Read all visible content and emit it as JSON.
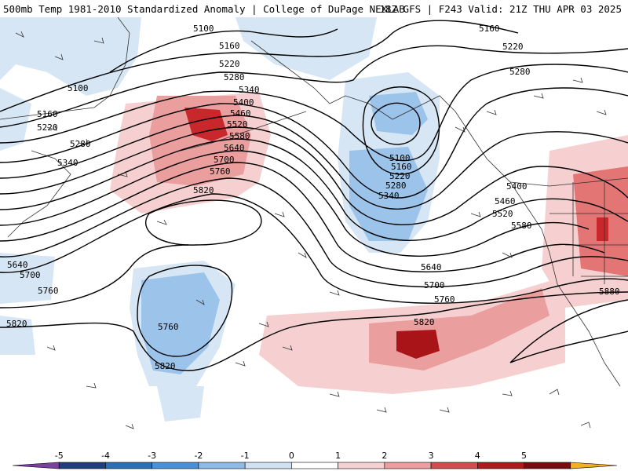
{
  "header": {
    "title_left": "500mb Temp 1981-2010 Standardized Anomaly | College of DuPage NEXLAB",
    "title_right": "18Z GFS | F243 Valid: 21Z THU APR 03 2025"
  },
  "colorbar": {
    "ticks": [
      "-5",
      "-4",
      "-3",
      "-2",
      "-1",
      "0",
      "1",
      "2",
      "3",
      "4",
      "5"
    ],
    "colors": [
      "#7b3fa0",
      "#1f3f7a",
      "#2c6db3",
      "#4a90d8",
      "#8cbbe6",
      "#cfe1f3",
      "#ffffff",
      "#f6d0d0",
      "#eb9e9e",
      "#d54b4b",
      "#b0181c",
      "#7a0c10",
      "#f0b020"
    ]
  },
  "map": {
    "contour_labels": [
      {
        "id": "5100-top",
        "text": "5100"
      },
      {
        "id": "5160-top",
        "text": "5160"
      },
      {
        "id": "5220-top",
        "text": "5220"
      },
      {
        "id": "5280-top",
        "text": "5280"
      },
      {
        "id": "5340-mid",
        "text": "5340"
      },
      {
        "id": "5400-mid",
        "text": "5400"
      },
      {
        "id": "5460-mid",
        "text": "5460"
      },
      {
        "id": "5520-mid",
        "text": "5520"
      },
      {
        "id": "5580-mid",
        "text": "5580"
      },
      {
        "id": "5640-mid",
        "text": "5640"
      },
      {
        "id": "5700-mid",
        "text": "5700"
      },
      {
        "id": "5760-mid",
        "text": "5760"
      },
      {
        "id": "5820-mid",
        "text": "5820"
      },
      {
        "id": "5100-left",
        "text": "5100"
      },
      {
        "id": "5160-left",
        "text": "5160"
      },
      {
        "id": "5220-left",
        "text": "5220"
      },
      {
        "id": "5280-left",
        "text": "5280"
      },
      {
        "id": "5340-left",
        "text": "5340"
      },
      {
        "id": "5640-left",
        "text": "5640"
      },
      {
        "id": "5700-left",
        "text": "5700"
      },
      {
        "id": "5760-left",
        "text": "5760"
      },
      {
        "id": "5820-left",
        "text": "5820"
      },
      {
        "id": "5760-low",
        "text": "5760"
      },
      {
        "id": "5820-low",
        "text": "5820"
      },
      {
        "id": "5100-trough",
        "text": "5100"
      },
      {
        "id": "5160-trough",
        "text": "5160"
      },
      {
        "id": "5220-trough",
        "text": "5220"
      },
      {
        "id": "5280-trough",
        "text": "5280"
      },
      {
        "id": "5340-trough",
        "text": "5340"
      },
      {
        "id": "5160-ne",
        "text": "5160"
      },
      {
        "id": "5220-ne",
        "text": "5220"
      },
      {
        "id": "5280-ne",
        "text": "5280"
      },
      {
        "id": "5400-e",
        "text": "5400"
      },
      {
        "id": "5460-e",
        "text": "5460"
      },
      {
        "id": "5520-e",
        "text": "5520"
      },
      {
        "id": "5580-e",
        "text": "5580"
      },
      {
        "id": "5640-s",
        "text": "5640"
      },
      {
        "id": "5700-s",
        "text": "5700"
      },
      {
        "id": "5760-s",
        "text": "5760"
      },
      {
        "id": "5820-s",
        "text": "5820"
      },
      {
        "id": "5880-se",
        "text": "5880"
      }
    ]
  }
}
